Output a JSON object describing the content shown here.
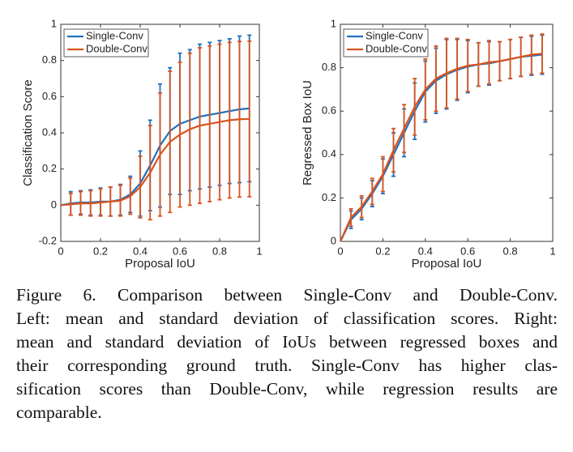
{
  "chart_data": [
    {
      "type": "line",
      "xlabel": "Proposal IoU",
      "ylabel": "Classification Score",
      "xlim": [
        0,
        1
      ],
      "ylim": [
        -0.2,
        1
      ],
      "xticks": [
        0,
        0.2,
        0.4,
        0.6,
        0.8,
        1
      ],
      "yticks": [
        -0.2,
        0,
        0.2,
        0.4,
        0.6,
        0.8,
        1
      ],
      "legend": "top-left",
      "x": [
        0,
        0.05,
        0.1,
        0.15,
        0.2,
        0.25,
        0.3,
        0.35,
        0.4,
        0.45,
        0.5,
        0.55,
        0.6,
        0.65,
        0.7,
        0.75,
        0.8,
        0.85,
        0.9,
        0.95
      ],
      "series": [
        {
          "name": "Single-Conv",
          "color": "#1f6fbf",
          "values": [
            0,
            0.01,
            0.015,
            0.015,
            0.02,
            0.02,
            0.03,
            0.06,
            0.12,
            0.22,
            0.33,
            0.41,
            0.45,
            0.47,
            0.49,
            0.5,
            0.51,
            0.52,
            0.53,
            0.535
          ],
          "errors": [
            null,
            0.065,
            0.065,
            0.07,
            0.075,
            0.08,
            0.085,
            0.1,
            0.18,
            0.25,
            0.34,
            0.35,
            0.39,
            0.39,
            0.4,
            0.4,
            0.4,
            0.4,
            0.405,
            0.405
          ]
        },
        {
          "name": "Double-Conv",
          "color": "#d9541e",
          "values": [
            0,
            0.005,
            0.01,
            0.01,
            0.015,
            0.02,
            0.025,
            0.05,
            0.1,
            0.18,
            0.28,
            0.35,
            0.39,
            0.42,
            0.44,
            0.45,
            0.46,
            0.47,
            0.475,
            0.477
          ],
          "errors": [
            null,
            0.06,
            0.065,
            0.07,
            0.075,
            0.08,
            0.085,
            0.1,
            0.17,
            0.26,
            0.34,
            0.39,
            0.4,
            0.42,
            0.43,
            0.43,
            0.43,
            0.43,
            0.43,
            0.43
          ]
        }
      ]
    },
    {
      "type": "line",
      "xlabel": "Proposal IoU",
      "ylabel": "Regressed Box IoU",
      "xlim": [
        0,
        1
      ],
      "ylim": [
        0,
        1
      ],
      "xticks": [
        0,
        0.2,
        0.4,
        0.6,
        0.8,
        1
      ],
      "yticks": [
        0,
        0.2,
        0.4,
        0.6,
        0.8,
        1
      ],
      "legend": "top-left",
      "x": [
        0,
        0.05,
        0.1,
        0.15,
        0.2,
        0.25,
        0.3,
        0.35,
        0.4,
        0.45,
        0.5,
        0.55,
        0.6,
        0.65,
        0.7,
        0.75,
        0.8,
        0.85,
        0.9,
        0.95
      ],
      "series": [
        {
          "name": "Single-Conv",
          "color": "#1f6fbf",
          "values": [
            0,
            0.1,
            0.15,
            0.22,
            0.3,
            0.4,
            0.5,
            0.6,
            0.69,
            0.74,
            0.77,
            0.79,
            0.805,
            0.815,
            0.82,
            0.83,
            0.84,
            0.85,
            0.855,
            0.86
          ],
          "errors": [
            null,
            0.04,
            0.05,
            0.06,
            0.08,
            0.1,
            0.11,
            0.13,
            0.14,
            0.15,
            0.16,
            0.14,
            0.12,
            0.1,
            0.1,
            0.09,
            0.09,
            0.09,
            0.09,
            0.09
          ]
        },
        {
          "name": "Double-Conv",
          "color": "#d9541e",
          "values": [
            0,
            0.11,
            0.16,
            0.23,
            0.31,
            0.42,
            0.52,
            0.62,
            0.7,
            0.75,
            0.775,
            0.795,
            0.81,
            0.815,
            0.825,
            0.83,
            0.84,
            0.85,
            0.86,
            0.865
          ],
          "errors": [
            null,
            0.04,
            0.05,
            0.06,
            0.08,
            0.1,
            0.11,
            0.13,
            0.14,
            0.15,
            0.16,
            0.14,
            0.12,
            0.1,
            0.1,
            0.09,
            0.09,
            0.09,
            0.09,
            0.09
          ]
        }
      ]
    }
  ],
  "caption": {
    "lines": [
      "Figure 6.   Comparison between Single-Conv and Double-Conv.",
      "Left: mean and standard deviation of classification scores. Right:",
      "mean and standard deviation of IoUs between regressed boxes and",
      "their corresponding ground truth.  Single-Conv has higher clas-",
      "sification scores than Double-Conv, while regression results are",
      "comparable."
    ]
  }
}
